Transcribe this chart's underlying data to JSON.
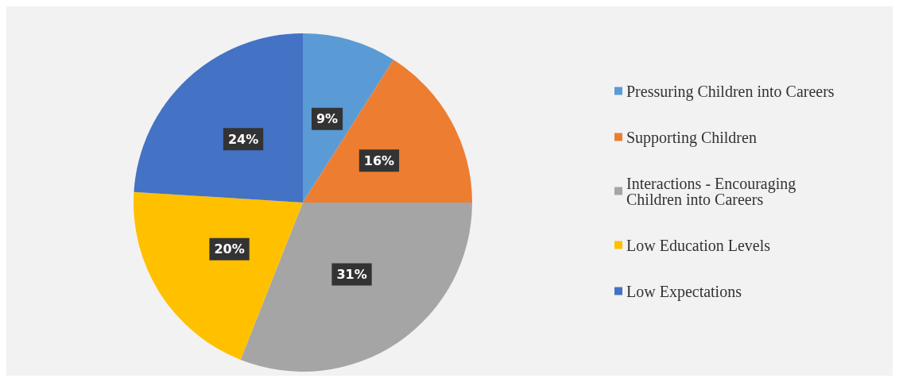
{
  "chart_data": {
    "type": "pie",
    "categories": [
      "Pressuring Children into Careers",
      "Supporting Children",
      "Interactions - Encouraging Children into Careers",
      "Low Education Levels",
      "Low Expectations"
    ],
    "values": [
      9,
      16,
      31,
      20,
      24
    ],
    "colors": [
      "#5b9bd5",
      "#ed7d31",
      "#a5a5a5",
      "#ffc000",
      "#4472c4"
    ],
    "value_labels": [
      "9%",
      "16%",
      "31%",
      "20%",
      "24%"
    ],
    "legend": "right"
  }
}
